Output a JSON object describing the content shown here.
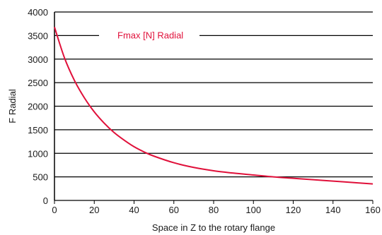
{
  "chart_data": {
    "type": "line",
    "title": "",
    "xlabel": "Space in Z to the rotary flange",
    "ylabel": "F Radial",
    "xlim": [
      0,
      160
    ],
    "ylim": [
      0,
      4000
    ],
    "x_ticks": [
      "0",
      "20",
      "40",
      "60",
      "80",
      "100",
      "120",
      "140",
      "160"
    ],
    "y_ticks": [
      "0",
      "500",
      "1000",
      "1500",
      "2000",
      "2500",
      "3000",
      "3500",
      "4000"
    ],
    "grid": "horizontal",
    "legend_position": "top",
    "colors": {
      "series": "#e0103a",
      "grid": "#000000",
      "legend_text": "#e0103a"
    },
    "series": [
      {
        "name": "Fmax [N] Radial",
        "x": [
          0,
          5,
          10,
          15,
          20,
          25,
          30,
          35,
          40,
          45,
          50,
          60,
          70,
          80,
          90,
          100,
          110,
          120,
          130,
          140,
          150,
          160
        ],
        "y": [
          3680,
          3030,
          2550,
          2180,
          1880,
          1640,
          1440,
          1280,
          1140,
          1030,
          940,
          800,
          700,
          630,
          580,
          540,
          500,
          470,
          440,
          410,
          380,
          350
        ]
      }
    ]
  }
}
